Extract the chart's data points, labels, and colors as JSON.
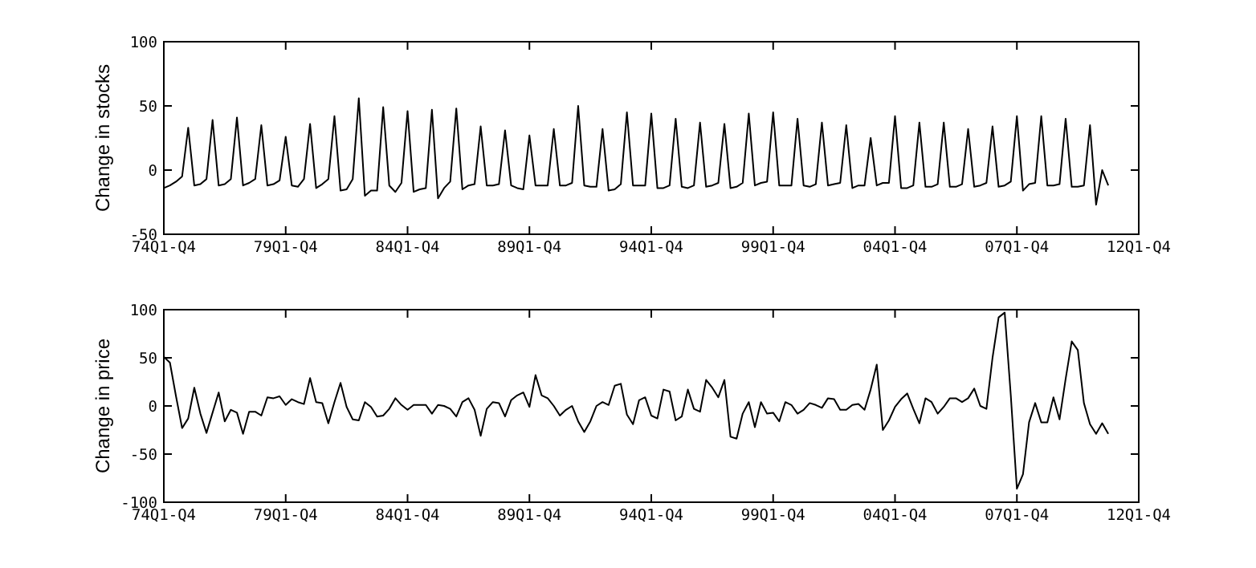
{
  "chart_data": [
    {
      "type": "line",
      "ylabel": "Change in stocks",
      "categories": [
        "74Q1-Q4",
        null,
        null,
        null,
        null,
        null,
        null,
        null,
        null,
        null,
        null,
        null,
        null,
        null,
        null,
        null,
        null,
        null,
        null,
        null,
        "79Q1-Q4",
        null,
        null,
        null,
        null,
        null,
        null,
        null,
        null,
        null,
        null,
        null,
        null,
        null,
        null,
        null,
        null,
        null,
        null,
        null,
        "84Q1-Q4",
        null,
        null,
        null,
        null,
        null,
        null,
        null,
        null,
        null,
        null,
        null,
        null,
        null,
        null,
        null,
        null,
        null,
        null,
        null,
        "89Q1-Q4",
        null,
        null,
        null,
        null,
        null,
        null,
        null,
        null,
        null,
        null,
        null,
        null,
        null,
        null,
        null,
        null,
        null,
        null,
        null,
        "94Q1-Q4",
        null,
        null,
        null,
        null,
        null,
        null,
        null,
        null,
        null,
        null,
        null,
        null,
        null,
        null,
        null,
        null,
        null,
        null,
        null,
        "99Q1-Q4",
        null,
        null,
        null,
        null,
        null,
        null,
        null,
        null,
        null,
        null,
        null,
        null,
        null,
        null,
        null,
        null,
        null,
        null,
        null,
        "04Q1-Q4",
        null,
        null,
        null,
        null,
        null,
        null,
        null,
        null,
        null,
        null,
        null,
        null,
        null,
        null,
        null,
        null,
        null,
        null,
        null,
        "07Q1-Q4",
        null,
        null,
        null,
        null,
        null,
        null,
        null,
        null,
        null,
        null,
        null,
        null,
        null,
        null,
        null,
        null,
        null,
        null,
        null,
        "12Q1-Q4"
      ],
      "ylim": [
        -50,
        100
      ],
      "yticks": [
        -50,
        0,
        50,
        100
      ],
      "grid": false,
      "marker": "none",
      "line_style": "solid",
      "series": [
        {
          "color": "#000000",
          "values": [
            -14,
            -12,
            -9,
            -5,
            33,
            -12,
            -11,
            -7,
            39,
            -12,
            -11,
            -7,
            41,
            -12,
            -10,
            -7,
            35,
            -12,
            -11,
            -8,
            26,
            -12,
            -13,
            -7,
            36,
            -14,
            -11,
            -7,
            42,
            -16,
            -15,
            -7,
            56,
            -20,
            -16,
            -16,
            49,
            -12,
            -17,
            -10,
            46,
            -17,
            -15,
            -14,
            47,
            -22,
            -14,
            -9,
            48,
            -15,
            -12,
            -11,
            34,
            -12,
            -12,
            -11,
            31,
            -12,
            -14,
            -15,
            27,
            -12,
            -12,
            -12,
            32,
            -12,
            -12,
            -10,
            50,
            -12,
            -13,
            -13,
            32,
            -16,
            -15,
            -11,
            45,
            -12,
            -12,
            -12,
            44,
            -14,
            -14,
            -12,
            40,
            -13,
            -14,
            -12,
            37,
            -13,
            -12,
            -10,
            36,
            -14,
            -13,
            -10,
            44,
            -12,
            -10,
            -9,
            45,
            -12,
            -12,
            -12,
            40,
            -12,
            -13,
            -11,
            37,
            -12,
            -11,
            -10,
            35,
            -14,
            -12,
            -12,
            25,
            -12,
            -10,
            -10,
            42,
            -14,
            -14,
            -12,
            37,
            -13,
            -13,
            -11,
            37,
            -13,
            -13,
            -11,
            32,
            -13,
            -12,
            -10,
            34,
            -13,
            -12,
            -9,
            42,
            -16,
            -11,
            -10,
            42,
            -12,
            -12,
            -11,
            40,
            -13,
            -13,
            -12,
            35,
            -27,
            0,
            -12,
            null,
            null,
            null,
            null,
            null
          ]
        }
      ]
    },
    {
      "type": "line",
      "ylabel": "Change in price",
      "categories": [
        "74Q1-Q4",
        null,
        null,
        null,
        null,
        null,
        null,
        null,
        null,
        null,
        null,
        null,
        null,
        null,
        null,
        null,
        null,
        null,
        null,
        null,
        "79Q1-Q4",
        null,
        null,
        null,
        null,
        null,
        null,
        null,
        null,
        null,
        null,
        null,
        null,
        null,
        null,
        null,
        null,
        null,
        null,
        null,
        "84Q1-Q4",
        null,
        null,
        null,
        null,
        null,
        null,
        null,
        null,
        null,
        null,
        null,
        null,
        null,
        null,
        null,
        null,
        null,
        null,
        null,
        "89Q1-Q4",
        null,
        null,
        null,
        null,
        null,
        null,
        null,
        null,
        null,
        null,
        null,
        null,
        null,
        null,
        null,
        null,
        null,
        null,
        null,
        "94Q1-Q4",
        null,
        null,
        null,
        null,
        null,
        null,
        null,
        null,
        null,
        null,
        null,
        null,
        null,
        null,
        null,
        null,
        null,
        null,
        null,
        "99Q1-Q4",
        null,
        null,
        null,
        null,
        null,
        null,
        null,
        null,
        null,
        null,
        null,
        null,
        null,
        null,
        null,
        null,
        null,
        null,
        null,
        "04Q1-Q4",
        null,
        null,
        null,
        null,
        null,
        null,
        null,
        null,
        null,
        null,
        null,
        null,
        null,
        null,
        null,
        null,
        null,
        null,
        null,
        "07Q1-Q4",
        null,
        null,
        null,
        null,
        null,
        null,
        null,
        null,
        null,
        null,
        null,
        null,
        null,
        null,
        null,
        null,
        null,
        null,
        null,
        "12Q1-Q4"
      ],
      "ylim": [
        -100,
        100
      ],
      "yticks": [
        -100,
        -50,
        0,
        50,
        100
      ],
      "grid": false,
      "marker": "none",
      "line_style": "solid",
      "series": [
        {
          "color": "#000000",
          "values": [
            51,
            45,
            10,
            -23,
            -13,
            19,
            -8,
            -28,
            -7,
            14,
            -16,
            -4,
            -7,
            -29,
            -6,
            -6,
            -10,
            9,
            8,
            10,
            1,
            7,
            4,
            2,
            29,
            4,
            3,
            -18,
            4,
            24,
            -1,
            -14,
            -15,
            4,
            -1,
            -11,
            -10,
            -3,
            8,
            1,
            -4,
            1,
            1,
            1,
            -8,
            1,
            0,
            -3,
            -11,
            4,
            8,
            -4,
            -31,
            -3,
            4,
            3,
            -11,
            6,
            11,
            14,
            -1,
            32,
            11,
            8,
            0,
            -10,
            -4,
            0,
            -16,
            -27,
            -16,
            0,
            4,
            1,
            21,
            23,
            -9,
            -19,
            6,
            9,
            -10,
            -13,
            17,
            15,
            -15,
            -11,
            17,
            -3,
            -6,
            27,
            19,
            9,
            27,
            -32,
            -34,
            -8,
            4,
            -22,
            4,
            -8,
            -7,
            -16,
            4,
            1,
            -8,
            -4,
            3,
            1,
            -2,
            8,
            7,
            -4,
            -4,
            1,
            2,
            -4,
            17,
            43,
            -25,
            -15,
            -1,
            7,
            13,
            -3,
            -18,
            8,
            4,
            -8,
            -1,
            8,
            8,
            4,
            8,
            18,
            0,
            -3,
            50,
            92,
            97,
            11,
            -86,
            -71,
            -17,
            3,
            -17,
            -17,
            9,
            -14,
            28,
            67,
            58,
            3,
            -19,
            -29,
            -18,
            -29,
            null,
            null,
            null,
            null,
            null
          ]
        }
      ]
    }
  ]
}
